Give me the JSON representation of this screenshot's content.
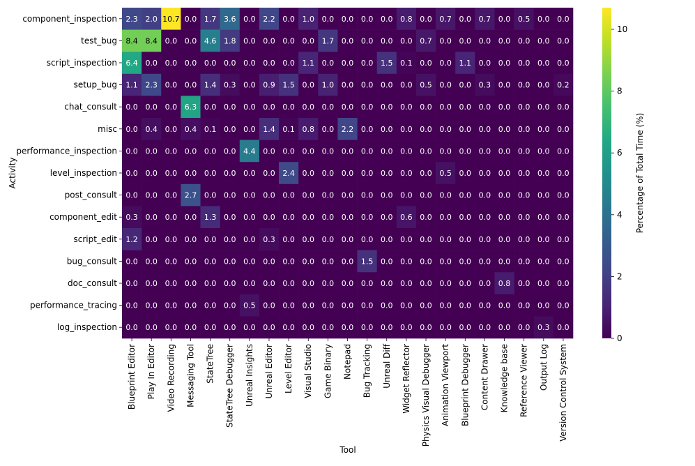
{
  "chart_data": {
    "type": "heatmap",
    "title": "",
    "xlabel": "Tool",
    "ylabel": "Activity",
    "colorbar_label": "Percentage of Total Time (%)",
    "colormap": "viridis",
    "value_range": [
      0,
      10.7
    ],
    "colorbar_ticks": [
      "0",
      "2",
      "4",
      "6",
      "8",
      "10"
    ],
    "colorbar_tick_values": [
      0,
      2,
      4,
      6,
      8,
      10
    ],
    "x_categories": [
      "Blueprint Editor",
      "Play In Editor",
      "Video Recording",
      "Messaging Tool",
      "StateTree",
      "StateTree Debugger",
      "Unreal Insights",
      "Unreal Editor",
      "Level Editor",
      "Visual Studio",
      "Game Binary",
      "Notepad",
      "Bug Tracking",
      "Unreal Diff",
      "Widget Reflector",
      "Physics Visual Debugger",
      "Animation Viewport",
      "Blueprint Debugger",
      "Content Drawer",
      "Knowledge base",
      "Reference Viewer",
      "Output Log",
      "Version Control System"
    ],
    "y_categories": [
      "component_inspection",
      "test_bug",
      "script_inspection",
      "setup_bug",
      "chat_consult",
      "misc",
      "performance_inspection",
      "level_inspection",
      "post_consult",
      "component_edit",
      "script_edit",
      "bug_consult",
      "doc_consult",
      "performance_tracing",
      "log_inspection"
    ],
    "values": [
      [
        2.3,
        2.0,
        10.7,
        0.0,
        1.7,
        3.6,
        0.0,
        2.2,
        0.0,
        1.0,
        0.0,
        0.0,
        0.0,
        0.0,
        0.8,
        0.0,
        0.7,
        0.0,
        0.7,
        0.0,
        0.5,
        0.0,
        0.0
      ],
      [
        8.4,
        8.4,
        0.0,
        0.0,
        4.6,
        1.8,
        0.0,
        0.0,
        0.0,
        0.0,
        1.7,
        0.0,
        0.0,
        0.0,
        0.0,
        0.7,
        0.0,
        0.0,
        0.0,
        0.0,
        0.0,
        0.0,
        0.0
      ],
      [
        6.4,
        0.0,
        0.0,
        0.0,
        0.0,
        0.0,
        0.0,
        0.0,
        0.0,
        1.1,
        0.0,
        0.0,
        0.0,
        1.5,
        0.1,
        0.0,
        0.0,
        1.1,
        0.0,
        0.0,
        0.0,
        0.0,
        0.0
      ],
      [
        1.1,
        2.3,
        0.0,
        0.0,
        1.4,
        0.3,
        0.0,
        0.9,
        1.5,
        0.0,
        1.0,
        0.0,
        0.0,
        0.0,
        0.0,
        0.5,
        0.0,
        0.0,
        0.3,
        0.0,
        0.0,
        0.0,
        0.2
      ],
      [
        0.0,
        0.0,
        0.0,
        6.3,
        0.0,
        0.0,
        0.0,
        0.0,
        0.0,
        0.0,
        0.0,
        0.0,
        0.0,
        0.0,
        0.0,
        0.0,
        0.0,
        0.0,
        0.0,
        0.0,
        0.0,
        0.0,
        0.0
      ],
      [
        0.0,
        0.4,
        0.0,
        0.4,
        0.1,
        0.0,
        0.0,
        1.4,
        0.1,
        0.8,
        0.0,
        2.2,
        0.0,
        0.0,
        0.0,
        0.0,
        0.0,
        0.0,
        0.0,
        0.0,
        0.0,
        0.0,
        0.0
      ],
      [
        0.0,
        0.0,
        0.0,
        0.0,
        0.0,
        0.0,
        4.4,
        0.0,
        0.0,
        0.0,
        0.0,
        0.0,
        0.0,
        0.0,
        0.0,
        0.0,
        0.0,
        0.0,
        0.0,
        0.0,
        0.0,
        0.0,
        0.0
      ],
      [
        0.0,
        0.0,
        0.0,
        0.0,
        0.0,
        0.0,
        0.0,
        0.0,
        2.4,
        0.0,
        0.0,
        0.0,
        0.0,
        0.0,
        0.0,
        0.0,
        0.5,
        0.0,
        0.0,
        0.0,
        0.0,
        0.0,
        0.0
      ],
      [
        0.0,
        0.0,
        0.0,
        2.7,
        0.0,
        0.0,
        0.0,
        0.0,
        0.0,
        0.0,
        0.0,
        0.0,
        0.0,
        0.0,
        0.0,
        0.0,
        0.0,
        0.0,
        0.0,
        0.0,
        0.0,
        0.0,
        0.0
      ],
      [
        0.3,
        0.0,
        0.0,
        0.0,
        1.3,
        0.0,
        0.0,
        0.0,
        0.0,
        0.0,
        0.0,
        0.0,
        0.0,
        0.0,
        0.6,
        0.0,
        0.0,
        0.0,
        0.0,
        0.0,
        0.0,
        0.0,
        0.0
      ],
      [
        1.2,
        0.0,
        0.0,
        0.0,
        0.0,
        0.0,
        0.0,
        0.3,
        0.0,
        0.0,
        0.0,
        0.0,
        0.0,
        0.0,
        0.0,
        0.0,
        0.0,
        0.0,
        0.0,
        0.0,
        0.0,
        0.0,
        0.0
      ],
      [
        0.0,
        0.0,
        0.0,
        0.0,
        0.0,
        0.0,
        0.0,
        0.0,
        0.0,
        0.0,
        0.0,
        0.0,
        1.5,
        0.0,
        0.0,
        0.0,
        0.0,
        0.0,
        0.0,
        0.0,
        0.0,
        0.0,
        0.0
      ],
      [
        0.0,
        0.0,
        0.0,
        0.0,
        0.0,
        0.0,
        0.0,
        0.0,
        0.0,
        0.0,
        0.0,
        0.0,
        0.0,
        0.0,
        0.0,
        0.0,
        0.0,
        0.0,
        0.0,
        0.8,
        0.0,
        0.0,
        0.0
      ],
      [
        0.0,
        0.0,
        0.0,
        0.0,
        0.0,
        0.0,
        0.5,
        0.0,
        0.0,
        0.0,
        0.0,
        0.0,
        0.0,
        0.0,
        0.0,
        0.0,
        0.0,
        0.0,
        0.0,
        0.0,
        0.0,
        0.0,
        0.0
      ],
      [
        0.0,
        0.0,
        0.0,
        0.0,
        0.0,
        0.0,
        0.0,
        0.0,
        0.0,
        0.0,
        0.0,
        0.0,
        0.0,
        0.0,
        0.0,
        0.0,
        0.0,
        0.0,
        0.0,
        0.0,
        0.0,
        0.3,
        0.0
      ]
    ],
    "grid": false,
    "annotations": "cell values shown"
  }
}
